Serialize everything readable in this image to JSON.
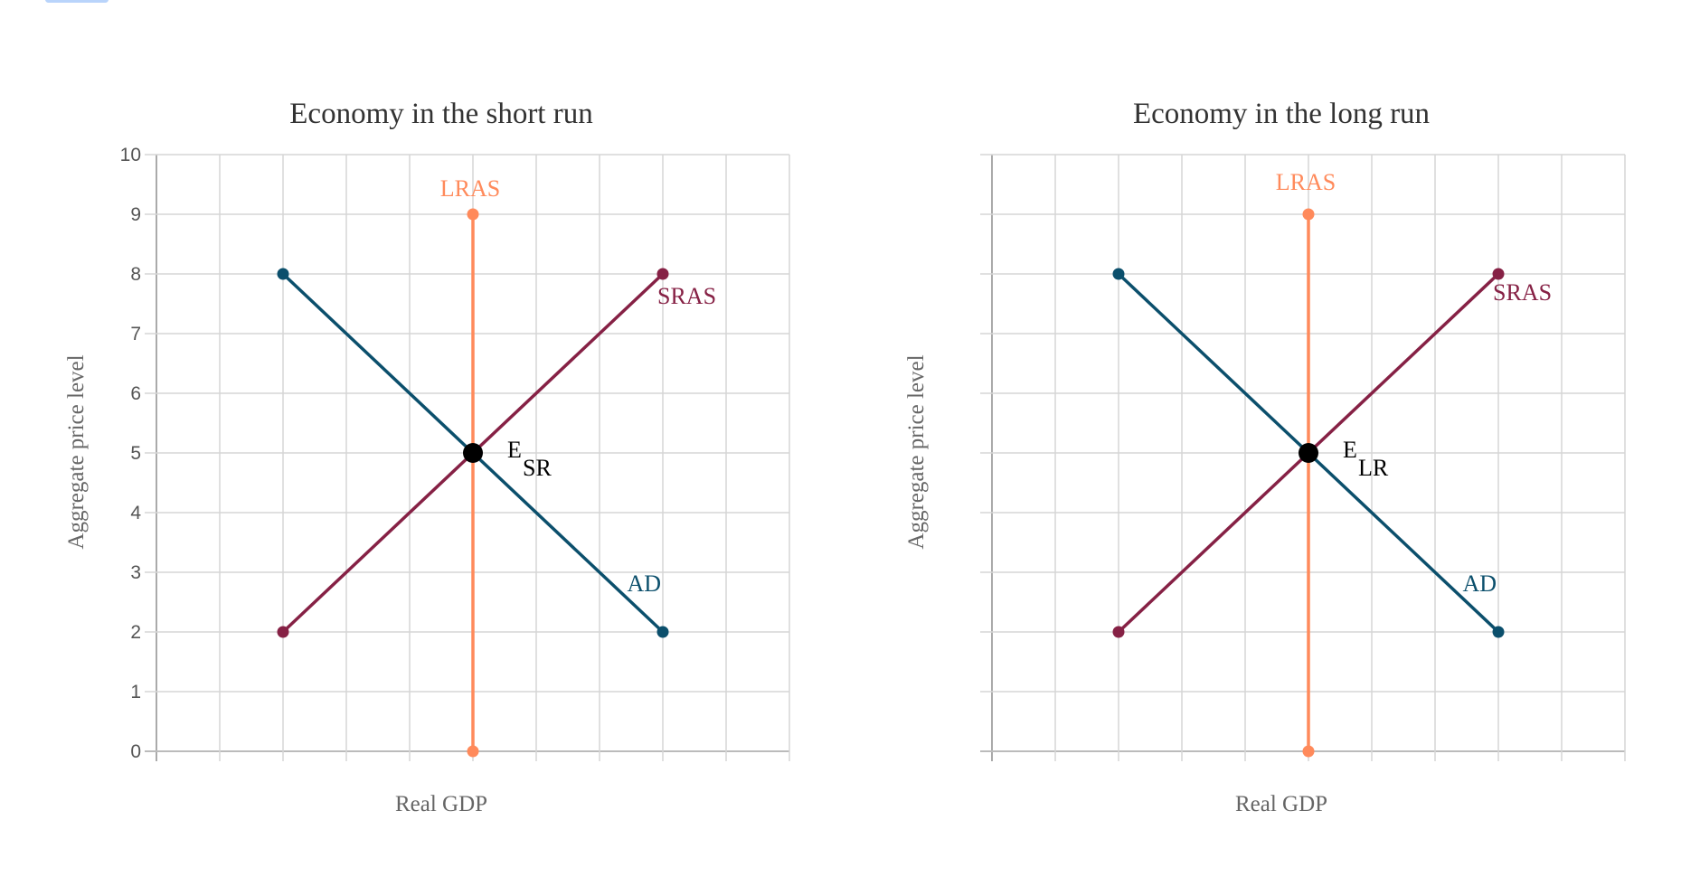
{
  "chart_data": [
    {
      "type": "line",
      "title": "Economy in the short run",
      "xlabel": "Real GDP",
      "ylabel": "Aggregate price level",
      "xlim": [
        0,
        10
      ],
      "ylim": [
        0,
        10
      ],
      "y_ticks": [
        "0",
        "1",
        "2",
        "3",
        "4",
        "5",
        "6",
        "7",
        "8",
        "9",
        "10"
      ],
      "show_y_tick_labels": true,
      "grid": true,
      "series": [
        {
          "name": "LRAS",
          "color": "#ff8a5b",
          "points": [
            [
              5,
              0
            ],
            [
              5,
              9
            ]
          ]
        },
        {
          "name": "SRAS",
          "color": "#862145",
          "points": [
            [
              2,
              2
            ],
            [
              8,
              8
            ]
          ]
        },
        {
          "name": "AD",
          "color": "#0b4f6c",
          "points": [
            [
              2,
              8
            ],
            [
              8,
              2
            ]
          ]
        }
      ],
      "equilibrium": {
        "label": "E",
        "subscript": "SR",
        "point": [
          5,
          5
        ],
        "color": "#000000"
      }
    },
    {
      "type": "line",
      "title": "Economy in the long run",
      "xlabel": "Real GDP",
      "ylabel": "Aggregate price level",
      "xlim": [
        0,
        10
      ],
      "ylim": [
        0,
        10
      ],
      "show_y_tick_labels": false,
      "grid": true,
      "series": [
        {
          "name": "LRAS",
          "color": "#ff8a5b",
          "points": [
            [
              5,
              0
            ],
            [
              5,
              9
            ]
          ]
        },
        {
          "name": "SRAS",
          "color": "#862145",
          "points": [
            [
              2,
              2
            ],
            [
              8,
              8
            ]
          ]
        },
        {
          "name": "AD",
          "color": "#0b4f6c",
          "points": [
            [
              2,
              8
            ],
            [
              8,
              2
            ]
          ]
        }
      ],
      "equilibrium": {
        "label": "E",
        "subscript": "LR",
        "point": [
          5,
          5
        ],
        "color": "#000000"
      }
    }
  ]
}
